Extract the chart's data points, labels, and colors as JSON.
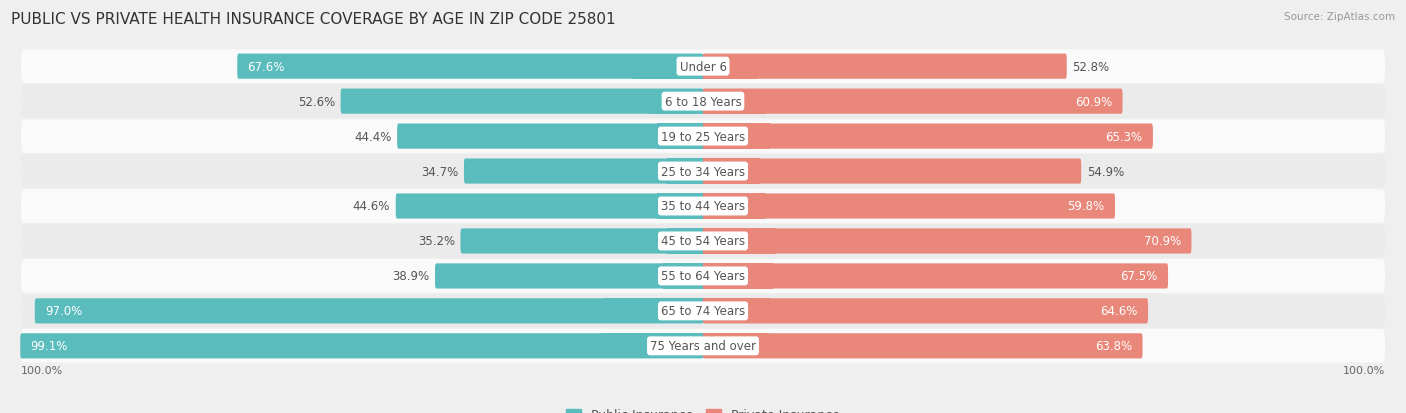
{
  "title": "PUBLIC VS PRIVATE HEALTH INSURANCE COVERAGE BY AGE IN ZIP CODE 25801",
  "source": "Source: ZipAtlas.com",
  "categories": [
    "Under 6",
    "6 to 18 Years",
    "19 to 25 Years",
    "25 to 34 Years",
    "35 to 44 Years",
    "45 to 54 Years",
    "55 to 64 Years",
    "65 to 74 Years",
    "75 Years and over"
  ],
  "public_values": [
    67.6,
    52.6,
    44.4,
    34.7,
    44.6,
    35.2,
    38.9,
    97.0,
    99.1
  ],
  "private_values": [
    52.8,
    60.9,
    65.3,
    54.9,
    59.8,
    70.9,
    67.5,
    64.6,
    63.8
  ],
  "public_color": "#5bbcbd",
  "private_color": "#e8877a",
  "background_color": "#efefef",
  "row_bg_colors": [
    "#fafafa",
    "#ebebeb",
    "#fafafa",
    "#ebebeb",
    "#fafafa",
    "#ebebeb",
    "#fafafa",
    "#ebebeb",
    "#fafafa"
  ],
  "title_fontsize": 11,
  "bar_label_fontsize": 8.5,
  "category_fontsize": 8.5,
  "legend_fontsize": 9,
  "axis_label_fontsize": 8,
  "max_value": 100.0,
  "x_left_label": "100.0%",
  "x_right_label": "100.0%",
  "pub_label_threshold": 60,
  "priv_label_threshold": 55
}
